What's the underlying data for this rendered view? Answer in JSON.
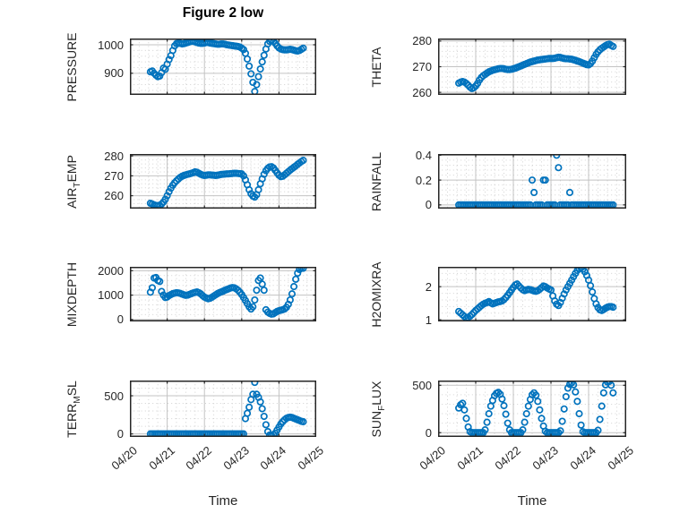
{
  "figure": {
    "title": "Figure 2 low",
    "xlabel": "Time",
    "xlim": [
      0,
      5
    ],
    "x_major_ticks": [
      0,
      1,
      2,
      3,
      4,
      5
    ],
    "x_tick_labels": [
      "04/20",
      "04/21",
      "04/22",
      "04/23",
      "04/24",
      "04/25"
    ],
    "x_minor_step": 0.25,
    "marker_color": "#0072BD",
    "axes_color": "#262626",
    "major_grid_color": "#c3c3c3",
    "minor_grid_color": "#d2d2d2",
    "text_color": "#262626"
  },
  "x_days": [
    0.55,
    0.6,
    0.65,
    0.7,
    0.75,
    0.8,
    0.85,
    0.9,
    0.95,
    1,
    1.05,
    1.1,
    1.15,
    1.2,
    1.25,
    1.3,
    1.35,
    1.4,
    1.45,
    1.5,
    1.55,
    1.6,
    1.65,
    1.7,
    1.75,
    1.8,
    1.85,
    1.9,
    1.95,
    2,
    2.05,
    2.1,
    2.15,
    2.2,
    2.25,
    2.3,
    2.35,
    2.4,
    2.45,
    2.5,
    2.55,
    2.6,
    2.65,
    2.7,
    2.75,
    2.8,
    2.85,
    2.9,
    2.95,
    3,
    3.05,
    3.1,
    3.15,
    3.2,
    3.25,
    3.3,
    3.35,
    3.4,
    3.45,
    3.5,
    3.55,
    3.6,
    3.65,
    3.7,
    3.75,
    3.8,
    3.85,
    3.9,
    3.95,
    4,
    4.05,
    4.1,
    4.15,
    4.2,
    4.25,
    4.3,
    4.35,
    4.4,
    4.45,
    4.5,
    4.55,
    4.6,
    4.65
  ],
  "chart_data": [
    {
      "id": "pressure",
      "type": "scatter",
      "row": 0,
      "col": 0,
      "label_pre": "PRESSURE",
      "label_sub": "",
      "label_post": "",
      "ylim": [
        824,
        1022
      ],
      "yticks": [
        900,
        1000
      ],
      "ytick_labels": [
        "900",
        "1000"
      ],
      "y_minor_step": 20,
      "values": [
        905,
        908,
        900,
        893,
        888,
        890,
        902,
        918,
        914,
        932,
        948,
        962,
        980,
        996,
        1004,
        1005,
        1005,
        1003,
        1004,
        1006,
        1008,
        1010,
        1012,
        1012,
        1010,
        1008,
        1006,
        1005,
        1005,
        1006,
        1008,
        1008,
        1006,
        1005,
        1004,
        1003,
        1002,
        1002,
        1003,
        1003,
        1002,
        1000,
        999,
        998,
        997,
        996,
        995,
        994,
        992,
        988,
        983,
        970,
        950,
        925,
        898,
        868,
        836,
        860,
        888,
        915,
        940,
        963,
        985,
        1003,
        1012,
        1015,
        1012,
        1005,
        996,
        989,
        985,
        983,
        982,
        982,
        983,
        984,
        983,
        981,
        979,
        978,
        980,
        984,
        988
      ]
    },
    {
      "id": "theta",
      "type": "scatter",
      "row": 0,
      "col": 1,
      "label_pre": "THETA",
      "label_sub": "",
      "label_post": "",
      "ylim": [
        259,
        281
      ],
      "yticks": [
        260,
        270,
        280
      ],
      "ytick_labels": [
        "260",
        "270",
        "280"
      ],
      "y_minor_step": 2,
      "values": [
        263.6,
        264,
        264.2,
        264,
        263.5,
        262.8,
        262,
        261.5,
        261.8,
        262.5,
        263.5,
        264.8,
        265.8,
        266.5,
        267,
        267.5,
        268,
        268.3,
        268.6,
        268.8,
        269,
        269.2,
        269.3,
        269.3,
        269.2,
        269,
        268.9,
        268.9,
        269,
        269.2,
        269.4,
        269.7,
        270,
        270.3,
        270.6,
        270.9,
        271.2,
        271.5,
        271.8,
        272,
        272.2,
        272.4,
        272.6,
        272.7,
        272.8,
        272.9,
        273,
        273.1,
        273.2,
        273.2,
        273.2,
        273.3,
        273.5,
        273.7,
        273.6,
        273.4,
        273.2,
        273.1,
        273.1,
        273,
        272.9,
        272.7,
        272.5,
        272.2,
        272,
        271.7,
        271.4,
        271.1,
        270.8,
        270.7,
        271.2,
        272.2,
        273.5,
        274.8,
        275.8,
        276.6,
        277.2,
        277.7,
        278.2,
        278.6,
        278.8,
        278.3,
        277.9
      ]
    },
    {
      "id": "air-temp",
      "type": "scatter",
      "row": 1,
      "col": 0,
      "label_pre": "AIR",
      "label_sub": "T",
      "label_post": "EMP",
      "ylim": [
        253.5,
        281
      ],
      "yticks": [
        260,
        270,
        280
      ],
      "ytick_labels": [
        "260",
        "270",
        "280"
      ],
      "y_minor_step": 2,
      "values": [
        256.2,
        255.8,
        255.4,
        255.1,
        255,
        255.2,
        255.8,
        256.8,
        258.2,
        260,
        262,
        263.8,
        265.3,
        266.5,
        267.5,
        268.4,
        269.2,
        269.8,
        270.2,
        270.5,
        270.8,
        271,
        271.3,
        271.6,
        272,
        271.8,
        271.3,
        270.8,
        270.4,
        270.2,
        270.3,
        270.5,
        270.5,
        270.4,
        270.3,
        270.2,
        270.3,
        270.5,
        270.7,
        270.8,
        270.9,
        271,
        271,
        271.1,
        271.2,
        271.3,
        271.3,
        271.2,
        271.1,
        271,
        270,
        268,
        265.5,
        263,
        261,
        259.8,
        259.3,
        260.5,
        263,
        266,
        268.5,
        270.8,
        272.6,
        273.8,
        274.5,
        274.6,
        274,
        272.8,
        271.5,
        270.3,
        269.6,
        269.8,
        270.5,
        271.3,
        272.1,
        272.9,
        273.6,
        274.3,
        275,
        275.8,
        276.5,
        277.2,
        277.8
      ]
    },
    {
      "id": "rainfall",
      "type": "scatter",
      "row": 1,
      "col": 1,
      "label_pre": "RAINFALL",
      "label_sub": "",
      "label_post": "",
      "ylim": [
        -0.03,
        0.41
      ],
      "yticks": [
        0,
        0.2,
        0.4
      ],
      "ytick_labels": [
        "0",
        "0.2",
        "0.4"
      ],
      "y_minor_step": 0.04,
      "values": [
        0,
        0,
        0,
        0,
        0,
        0,
        0,
        0,
        0,
        0,
        0,
        0,
        0,
        0,
        0,
        0,
        0,
        0,
        0,
        0,
        0,
        0,
        0,
        0,
        0,
        0,
        0,
        0,
        0,
        0,
        0,
        0,
        0,
        0,
        0,
        0,
        0,
        0,
        0,
        0.2,
        0.1,
        0,
        0,
        0,
        0,
        0.2,
        0.2,
        0,
        0,
        0,
        0,
        0,
        0.4,
        0.3,
        0,
        0,
        0,
        0,
        0,
        0.1,
        0,
        0,
        0,
        0,
        0,
        0,
        0,
        0,
        0,
        0,
        0,
        0,
        0,
        0,
        0,
        0,
        0,
        0,
        0,
        0,
        0,
        0,
        0
      ]
    },
    {
      "id": "mixdepth",
      "type": "scatter",
      "row": 2,
      "col": 0,
      "label_pre": "MIXDEPTH",
      "label_sub": "",
      "label_post": "",
      "ylim": [
        -80,
        2160
      ],
      "yticks": [
        0,
        1000,
        2000
      ],
      "ytick_labels": [
        "0",
        "1000",
        "2000"
      ],
      "y_minor_step": 200,
      "values": [
        1120,
        1300,
        1700,
        1720,
        1600,
        1560,
        1150,
        1000,
        900,
        920,
        980,
        1020,
        1060,
        1080,
        1100,
        1090,
        1070,
        1040,
        1010,
        990,
        1000,
        1030,
        1060,
        1090,
        1110,
        1130,
        1100,
        1050,
        980,
        920,
        880,
        850,
        870,
        910,
        960,
        1010,
        1060,
        1100,
        1130,
        1160,
        1200,
        1230,
        1260,
        1290,
        1310,
        1300,
        1260,
        1200,
        1120,
        1020,
        900,
        780,
        650,
        520,
        430,
        520,
        800,
        1200,
        1600,
        1700,
        1450,
        1200,
        400,
        300,
        250,
        220,
        230,
        280,
        330,
        360,
        380,
        400,
        430,
        500,
        620,
        800,
        1050,
        1350,
        1650,
        1900,
        2050,
        2120,
        2100
      ]
    },
    {
      "id": "h2omixra",
      "type": "scatter",
      "row": 2,
      "col": 1,
      "label_pre": "H2OMIXRA",
      "label_sub": "",
      "label_post": "",
      "ylim": [
        0.95,
        2.6
      ],
      "yticks": [
        1,
        2
      ],
      "ytick_labels": [
        "1",
        "2"
      ],
      "y_minor_step": 0.2,
      "values": [
        1.25,
        1.2,
        1.15,
        1.1,
        1.05,
        1.07,
        1.11,
        1.16,
        1.22,
        1.28,
        1.33,
        1.38,
        1.43,
        1.47,
        1.5,
        1.52,
        1.55,
        1.51,
        1.48,
        1.5,
        1.52,
        1.54,
        1.55,
        1.57,
        1.61,
        1.67,
        1.74,
        1.82,
        1.9,
        1.98,
        2.05,
        2.08,
        2.02,
        1.96,
        1.91,
        1.88,
        1.9,
        1.92,
        1.91,
        1.89,
        1.87,
        1.86,
        1.88,
        1.92,
        1.97,
        2.02,
        2,
        1.96,
        1.93,
        1.9,
        1.72,
        1.57,
        1.47,
        1.43,
        1.52,
        1.65,
        1.78,
        1.9,
        2,
        2.1,
        2.2,
        2.3,
        2.4,
        2.49,
        2.55,
        2.57,
        2.53,
        2.45,
        2.34,
        2.2,
        2.03,
        1.84,
        1.64,
        1.48,
        1.37,
        1.3,
        1.28,
        1.31,
        1.35,
        1.38,
        1.4,
        1.4,
        1.38
      ]
    },
    {
      "id": "terr-msl",
      "type": "scatter",
      "row": 3,
      "col": 0,
      "label_pre": "TERR",
      "label_sub": "M",
      "label_post": "SL",
      "ylim": [
        -40,
        700
      ],
      "yticks": [
        0,
        500
      ],
      "ytick_labels": [
        "0",
        "500"
      ],
      "y_minor_step": 100,
      "values": [
        0,
        0,
        0,
        0,
        0,
        0,
        0,
        0,
        0,
        0,
        0,
        0,
        0,
        0,
        0,
        0,
        0,
        0,
        0,
        0,
        0,
        0,
        0,
        0,
        0,
        0,
        0,
        0,
        0,
        0,
        0,
        0,
        0,
        0,
        0,
        0,
        0,
        0,
        0,
        0,
        0,
        0,
        0,
        0,
        0,
        0,
        0,
        0,
        0,
        0,
        0,
        200,
        270,
        350,
        450,
        520,
        675,
        520,
        480,
        420,
        330,
        230,
        120,
        30,
        -15,
        -20,
        -10,
        10,
        50,
        90,
        130,
        160,
        185,
        205,
        215,
        220,
        215,
        205,
        195,
        185,
        175,
        165,
        160
      ]
    },
    {
      "id": "sun-flux",
      "type": "scatter",
      "row": 3,
      "col": 1,
      "label_pre": "SUN",
      "label_sub": "F",
      "label_post": "LUX",
      "ylim": [
        -45,
        550
      ],
      "yticks": [
        0,
        500
      ],
      "ytick_labels": [
        "0",
        "500"
      ],
      "y_minor_step": 100,
      "values": [
        260,
        295,
        310,
        240,
        150,
        60,
        10,
        0,
        0,
        0,
        0,
        0,
        0,
        0,
        30,
        110,
        200,
        280,
        340,
        390,
        415,
        425,
        405,
        355,
        285,
        195,
        100,
        30,
        0,
        0,
        0,
        0,
        0,
        0,
        30,
        110,
        200,
        280,
        350,
        400,
        420,
        395,
        330,
        240,
        150,
        70,
        15,
        0,
        0,
        0,
        0,
        0,
        0,
        0,
        20,
        120,
        250,
        380,
        470,
        510,
        525,
        505,
        430,
        330,
        200,
        80,
        10,
        0,
        0,
        0,
        0,
        0,
        0,
        0,
        25,
        140,
        280,
        420,
        505,
        535,
        540,
        500,
        420
      ]
    }
  ]
}
